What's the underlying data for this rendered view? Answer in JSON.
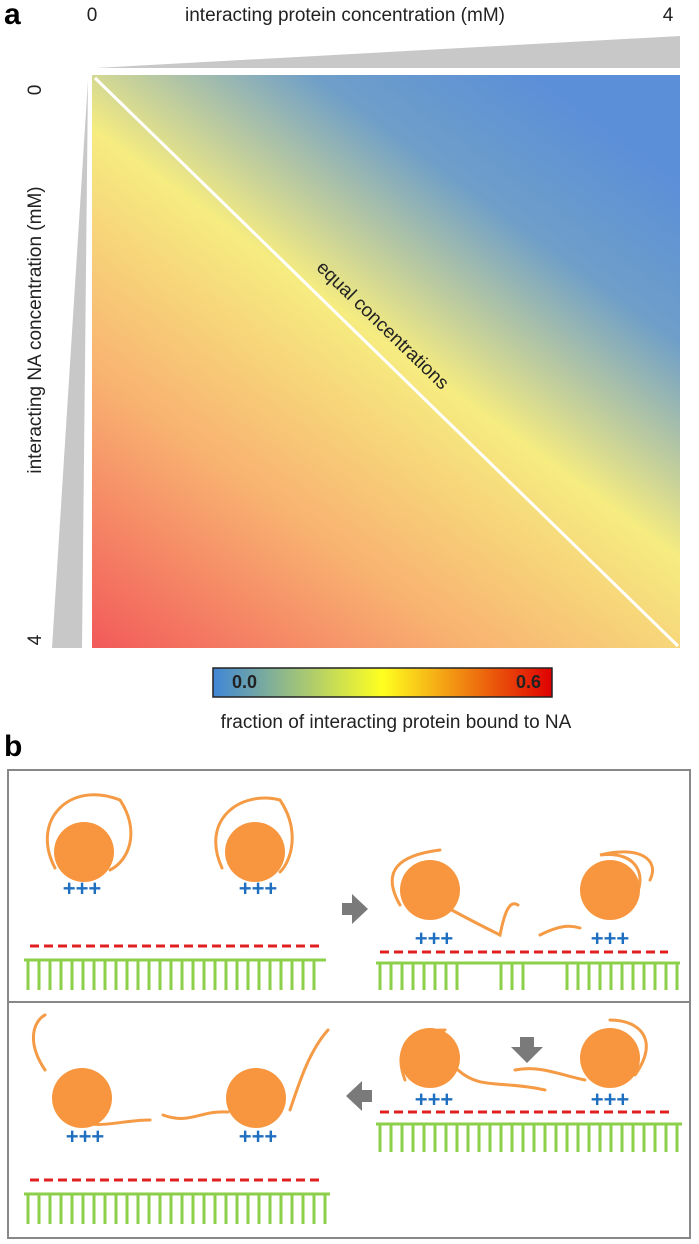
{
  "panel_a": {
    "label": "a",
    "x_axis": {
      "title": "interacting protein concentration  (mM)",
      "min": "0",
      "max": "4"
    },
    "y_axis": {
      "title": "interacting NA concentration  (mM)",
      "min": "0",
      "max": "4"
    },
    "diagonal_label": "equal concentrations",
    "colorbar": {
      "min_label": "0.0",
      "max_label": "0.6",
      "caption": "fraction of interacting protein bound to NA"
    }
  },
  "panel_b": {
    "label": "b",
    "charges": [
      "+++",
      "+++",
      "+++",
      "+++",
      "+++",
      "+++",
      "+++",
      "+++"
    ]
  }
}
